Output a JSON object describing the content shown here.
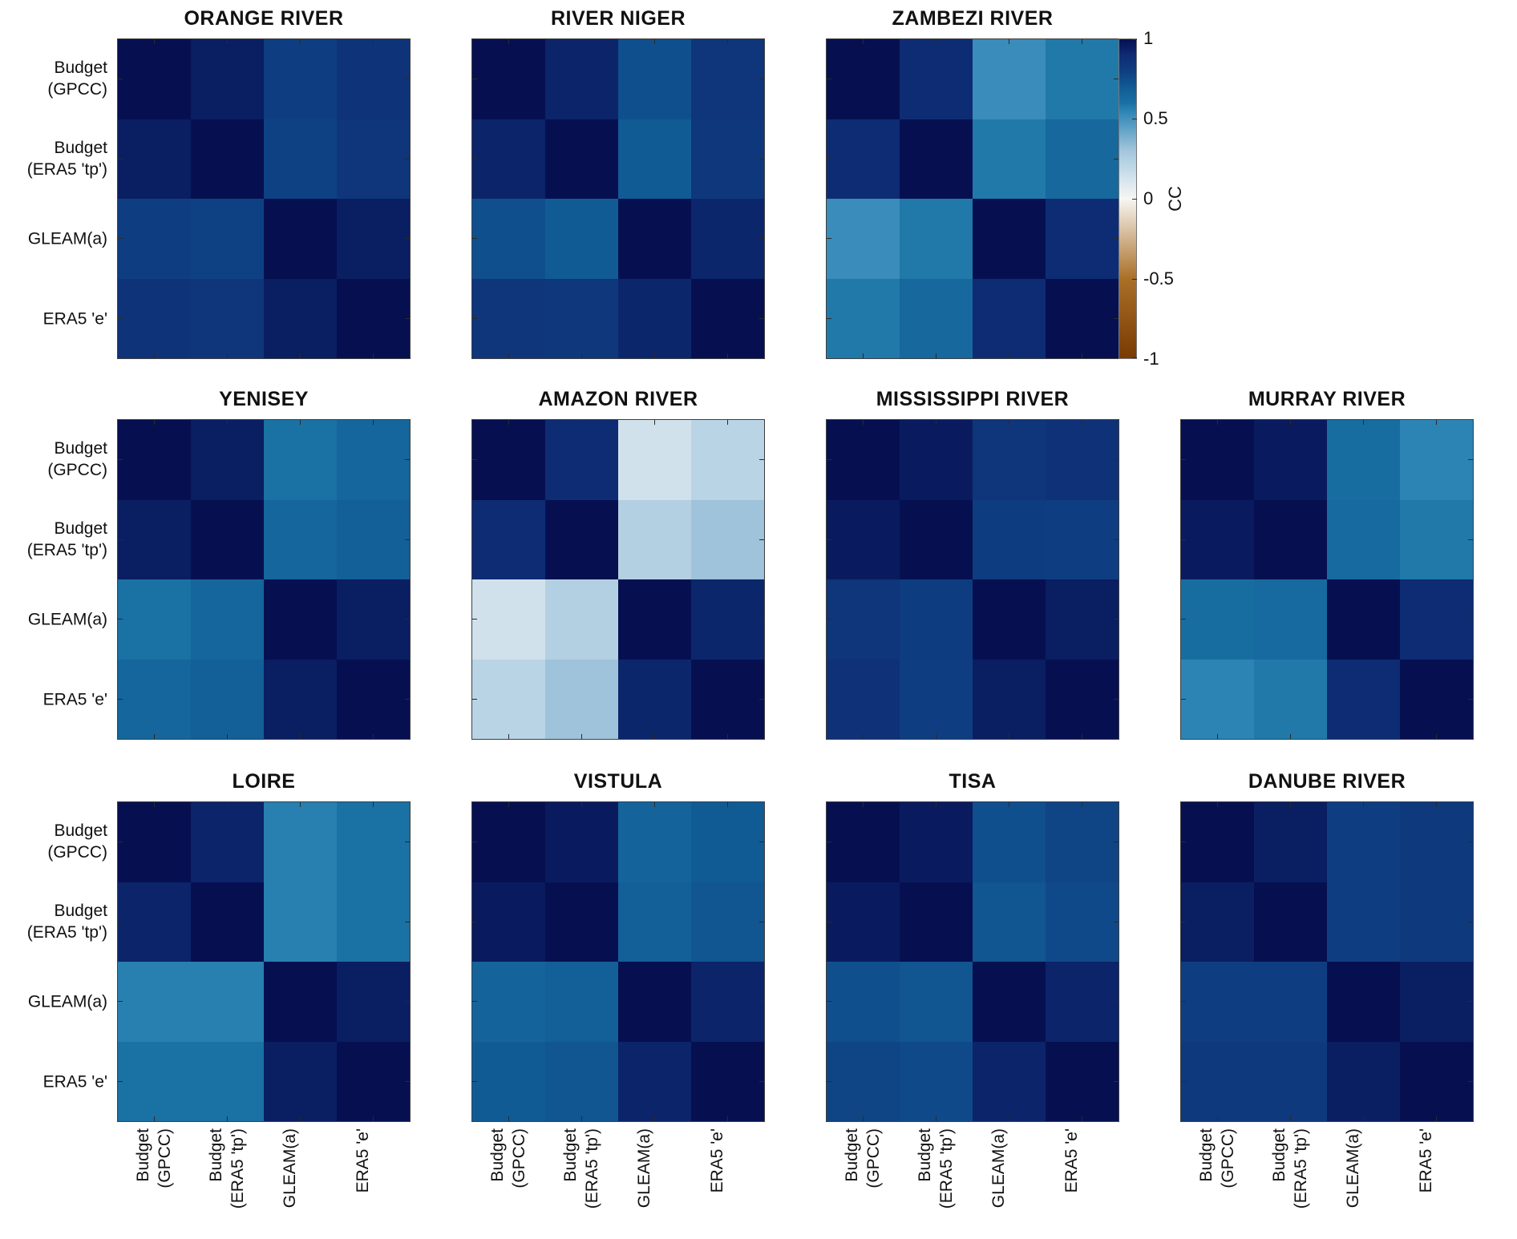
{
  "figure_title": "",
  "colorbar": {
    "label": "CC",
    "tick_labels": [
      "1",
      "0.5",
      "0",
      "-0.5",
      "-1"
    ],
    "tick_values": [
      1,
      0.5,
      0,
      -0.5,
      -1
    ]
  },
  "axis_categories": [
    "Budget\n(GPCC)",
    "Budget\n(ERA5 'tp')",
    "GLEAM(a)",
    "ERA5 'e'"
  ],
  "chart_data": {
    "type": "heatmap",
    "subtype": "correlation-matrix-grid",
    "categories": [
      "Budget (GPCC)",
      "Budget (ERA5 'tp')",
      "GLEAM(a)",
      "ERA5 'e'"
    ],
    "value_label": "CC",
    "value_range": [
      -1,
      1
    ],
    "legend_position": "right-of-first-row",
    "grid_shape": {
      "rows": 3,
      "cols": 4,
      "first_row_panels": 3
    },
    "colormap_anchors": [
      [
        -1.0,
        "#7a3a04"
      ],
      [
        -0.5,
        "#aa7028"
      ],
      [
        0.0,
        "#f7f6f2"
      ],
      [
        0.12,
        "#d7e4ed"
      ],
      [
        0.2,
        "#bed7e6"
      ],
      [
        0.3,
        "#a3c6dc"
      ],
      [
        0.55,
        "#2c84b5"
      ],
      [
        0.6,
        "#1a71a3"
      ],
      [
        0.65,
        "#15669c"
      ],
      [
        0.7,
        "#115b95"
      ],
      [
        0.75,
        "#104c8b"
      ],
      [
        0.8,
        "#0e3e81"
      ],
      [
        0.85,
        "#0f357a"
      ],
      [
        0.9,
        "#0e2c73"
      ],
      [
        0.95,
        "#0a1e62"
      ],
      [
        1.0,
        "#061050"
      ]
    ],
    "panels": [
      {
        "title": "ORANGE RIVER",
        "grid": [
          0,
          0
        ],
        "values": [
          [
            1.0,
            0.95,
            0.8,
            0.86
          ],
          [
            0.95,
            1.0,
            0.79,
            0.85
          ],
          [
            0.8,
            0.79,
            1.0,
            0.95
          ],
          [
            0.86,
            0.85,
            0.95,
            1.0
          ]
        ]
      },
      {
        "title": "RIVER NIGER",
        "grid": [
          0,
          1
        ],
        "values": [
          [
            1.0,
            0.93,
            0.74,
            0.85
          ],
          [
            0.93,
            1.0,
            0.7,
            0.84
          ],
          [
            0.74,
            0.7,
            1.0,
            0.92
          ],
          [
            0.85,
            0.84,
            0.92,
            1.0
          ]
        ]
      },
      {
        "title": "ZAMBEZI RIVER",
        "grid": [
          0,
          2
        ],
        "values": [
          [
            1.0,
            0.9,
            0.52,
            0.58
          ],
          [
            0.9,
            1.0,
            0.58,
            0.64
          ],
          [
            0.52,
            0.58,
            1.0,
            0.9
          ],
          [
            0.58,
            0.64,
            0.9,
            1.0
          ]
        ]
      },
      {
        "title": "YENISEY",
        "grid": [
          1,
          0
        ],
        "values": [
          [
            1.0,
            0.95,
            0.6,
            0.65
          ],
          [
            0.95,
            1.0,
            0.65,
            0.68
          ],
          [
            0.6,
            0.65,
            1.0,
            0.95
          ],
          [
            0.65,
            0.68,
            0.95,
            1.0
          ]
        ]
      },
      {
        "title": "AMAZON RIVER",
        "grid": [
          1,
          1
        ],
        "values": [
          [
            1.0,
            0.9,
            0.14,
            0.22
          ],
          [
            0.9,
            1.0,
            0.24,
            0.31
          ],
          [
            0.14,
            0.24,
            1.0,
            0.92
          ],
          [
            0.22,
            0.31,
            0.92,
            1.0
          ]
        ]
      },
      {
        "title": "MISSISSIPPI RIVER",
        "grid": [
          1,
          2
        ],
        "values": [
          [
            1.0,
            0.96,
            0.85,
            0.87
          ],
          [
            0.96,
            1.0,
            0.81,
            0.8
          ],
          [
            0.85,
            0.81,
            1.0,
            0.95
          ],
          [
            0.87,
            0.8,
            0.95,
            1.0
          ]
        ]
      },
      {
        "title": "MURRAY RIVER",
        "grid": [
          1,
          3
        ],
        "values": [
          [
            1.0,
            0.96,
            0.62,
            0.55
          ],
          [
            0.96,
            1.0,
            0.63,
            0.58
          ],
          [
            0.62,
            0.63,
            1.0,
            0.9
          ],
          [
            0.55,
            0.58,
            0.9,
            1.0
          ]
        ]
      },
      {
        "title": "LOIRE",
        "grid": [
          2,
          0
        ],
        "values": [
          [
            1.0,
            0.93,
            0.56,
            0.6
          ],
          [
            0.93,
            1.0,
            0.56,
            0.6
          ],
          [
            0.56,
            0.56,
            1.0,
            0.95
          ],
          [
            0.6,
            0.6,
            0.95,
            1.0
          ]
        ]
      },
      {
        "title": "VISTULA",
        "grid": [
          2,
          1
        ],
        "values": [
          [
            1.0,
            0.96,
            0.66,
            0.7
          ],
          [
            0.96,
            1.0,
            0.68,
            0.72
          ],
          [
            0.66,
            0.68,
            1.0,
            0.93
          ],
          [
            0.7,
            0.72,
            0.93,
            1.0
          ]
        ]
      },
      {
        "title": "TISA",
        "grid": [
          2,
          2
        ],
        "values": [
          [
            1.0,
            0.96,
            0.74,
            0.78
          ],
          [
            0.96,
            1.0,
            0.72,
            0.76
          ],
          [
            0.74,
            0.72,
            1.0,
            0.93
          ],
          [
            0.78,
            0.76,
            0.93,
            1.0
          ]
        ]
      },
      {
        "title": "DANUBE RIVER",
        "grid": [
          2,
          3
        ],
        "values": [
          [
            1.0,
            0.95,
            0.8,
            0.83
          ],
          [
            0.95,
            1.0,
            0.8,
            0.83
          ],
          [
            0.8,
            0.8,
            1.0,
            0.95
          ],
          [
            0.83,
            0.83,
            0.95,
            1.0
          ]
        ]
      }
    ]
  }
}
